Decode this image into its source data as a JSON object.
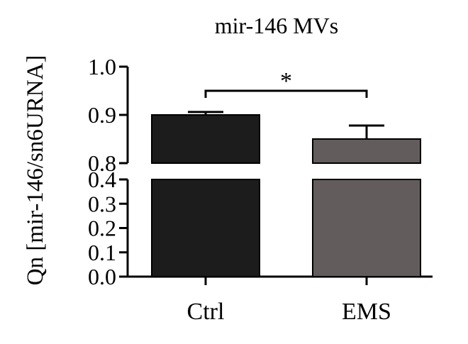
{
  "chart_data": {
    "type": "bar",
    "title": "mir-146 MVs",
    "xlabel": "",
    "ylabel": "Qn [mir-146/sn6URNA]",
    "categories": [
      "Ctrl",
      "EMS"
    ],
    "values": [
      0.9,
      0.85
    ],
    "errors": [
      0.006,
      0.028
    ],
    "colors": [
      "#1c1c1c",
      "#625d5c"
    ],
    "axis_break": {
      "lower_range": [
        0.0,
        0.4
      ],
      "upper_range": [
        0.8,
        1.0
      ]
    },
    "y_ticks_lower": [
      "0.0",
      "0.1",
      "0.2",
      "0.3",
      "0.4"
    ],
    "y_ticks_upper": [
      "0.8",
      "0.9",
      "1.0"
    ],
    "significance": {
      "between": [
        "Ctrl",
        "EMS"
      ],
      "label": "*"
    },
    "grid": false,
    "legend": "none"
  }
}
